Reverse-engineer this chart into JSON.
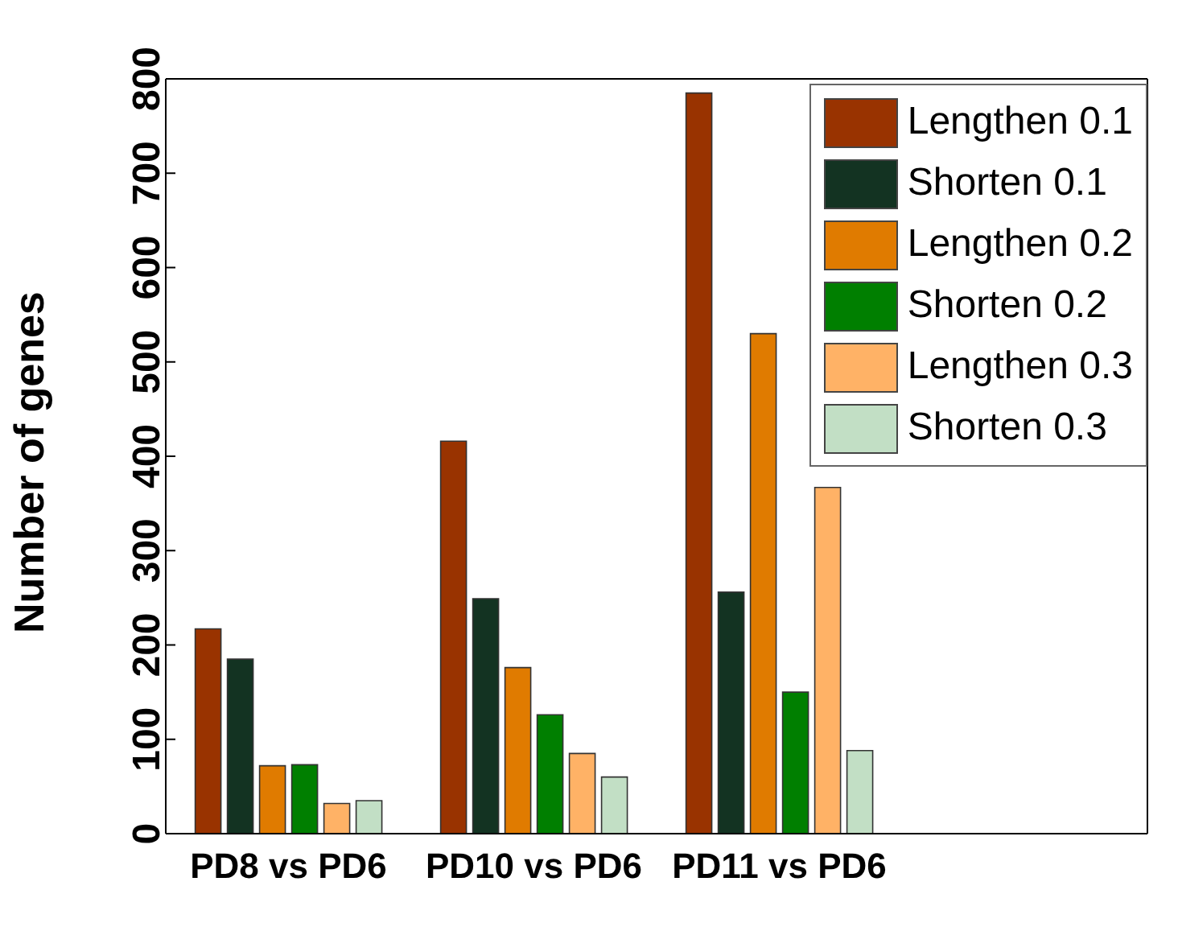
{
  "chart_data": {
    "type": "bar",
    "ylabel": "Number of genes",
    "categories": [
      "PD8 vs PD6",
      "PD10 vs PD6",
      "PD11 vs PD6",
      null
    ],
    "series": [
      {
        "name": "Lengthen 0.1",
        "color": "#993300",
        "values": [
          217,
          416,
          785,
          null
        ]
      },
      {
        "name": "Shorten 0.1",
        "color": "#133322",
        "values": [
          185,
          249,
          256,
          null
        ]
      },
      {
        "name": "Lengthen 0.2",
        "color": "#e07b00",
        "values": [
          72,
          176,
          530,
          null
        ]
      },
      {
        "name": "Shorten 0.2",
        "color": "#007f00",
        "values": [
          73,
          126,
          150,
          null
        ]
      },
      {
        "name": "Lengthen 0.3",
        "color": "#ffb266",
        "values": [
          32,
          85,
          367,
          null
        ]
      },
      {
        "name": "Shorten 0.3",
        "color": "#c2dfc5",
        "values": [
          35,
          60,
          88,
          null
        ]
      }
    ],
    "ylim": [
      0,
      800
    ],
    "yticks": [
      0,
      100,
      200,
      300,
      400,
      500,
      600,
      700,
      800
    ],
    "grid": false,
    "legend": "top right"
  }
}
